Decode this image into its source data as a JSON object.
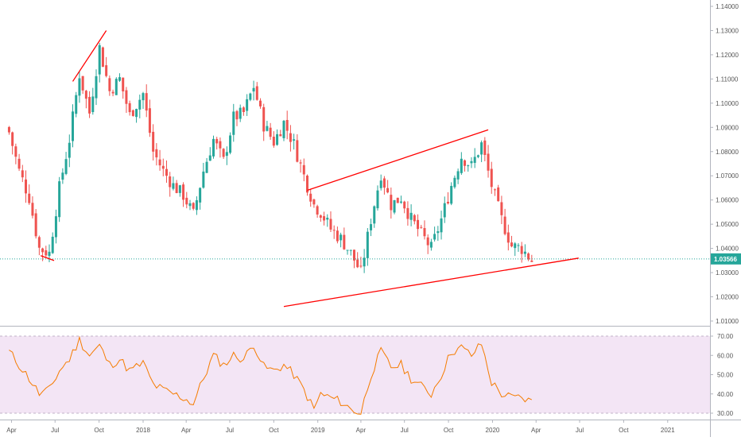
{
  "chart_data": [
    {
      "type": "candlestick",
      "title": "",
      "x_axis_labels": [
        "Apr",
        "Jul",
        "Oct",
        "2018",
        "Apr",
        "Jul",
        "Oct",
        "2019",
        "Apr",
        "Jul",
        "Oct",
        "2020",
        "Apr",
        "Jul",
        "Oct",
        "2021"
      ],
      "y_axis_labels": [
        "1.01000",
        "1.02000",
        "1.03000",
        "1.04000",
        "1.05000",
        "1.06000",
        "1.07000",
        "1.08000",
        "1.09000",
        "1.10000",
        "1.11000",
        "1.12000",
        "1.13000",
        "1.14000"
      ],
      "ylim": [
        1.007,
        1.142
      ],
      "last_price": "1.03566",
      "last_price_value": 1.03566,
      "colors": {
        "up": "#26a69a",
        "down": "#ef5350",
        "trendline": "#ff0000",
        "price_line": "#26a69a"
      },
      "close_path": [
        [
          "2017-03-27",
          1.088
        ],
        [
          "2017-04-17",
          1.072
        ],
        [
          "2017-05-08",
          1.061
        ],
        [
          "2017-05-29",
          1.04
        ],
        [
          "2017-06-19",
          1.038
        ],
        [
          "2017-07-10",
          1.065
        ],
        [
          "2017-07-31",
          1.085
        ],
        [
          "2017-08-21",
          1.112
        ],
        [
          "2017-09-11",
          1.096
        ],
        [
          "2017-10-02",
          1.123
        ],
        [
          "2017-10-23",
          1.105
        ],
        [
          "2017-11-13",
          1.11
        ],
        [
          "2017-12-04",
          1.095
        ],
        [
          "2018-01-01",
          1.104
        ],
        [
          "2018-01-22",
          1.08
        ],
        [
          "2018-02-12",
          1.072
        ],
        [
          "2018-03-05",
          1.066
        ],
        [
          "2018-03-26",
          1.062
        ],
        [
          "2018-04-16",
          1.054
        ],
        [
          "2018-05-07",
          1.072
        ],
        [
          "2018-05-28",
          1.085
        ],
        [
          "2018-06-18",
          1.076
        ],
        [
          "2018-07-09",
          1.094
        ],
        [
          "2018-07-30",
          1.096
        ],
        [
          "2018-08-20",
          1.107
        ],
        [
          "2018-09-10",
          1.091
        ],
        [
          "2018-10-01",
          1.084
        ],
        [
          "2018-10-22",
          1.092
        ],
        [
          "2018-11-12",
          1.083
        ],
        [
          "2018-12-03",
          1.07
        ],
        [
          "2018-12-24",
          1.058
        ],
        [
          "2019-01-07",
          1.055
        ],
        [
          "2019-01-28",
          1.048
        ],
        [
          "2019-02-18",
          1.044
        ],
        [
          "2019-03-11",
          1.038
        ],
        [
          "2019-04-01",
          1.03
        ],
        [
          "2019-04-22",
          1.052
        ],
        [
          "2019-05-13",
          1.071
        ],
        [
          "2019-06-03",
          1.058
        ],
        [
          "2019-06-24",
          1.061
        ],
        [
          "2019-07-15",
          1.052
        ],
        [
          "2019-08-05",
          1.046
        ],
        [
          "2019-08-26",
          1.04
        ],
        [
          "2019-09-16",
          1.052
        ],
        [
          "2019-10-07",
          1.066
        ],
        [
          "2019-10-28",
          1.078
        ],
        [
          "2019-11-18",
          1.074
        ],
        [
          "2019-12-09",
          1.083
        ],
        [
          "2019-12-30",
          1.066
        ],
        [
          "2020-01-20",
          1.052
        ],
        [
          "2020-02-10",
          1.041
        ],
        [
          "2020-03-02",
          1.04
        ],
        [
          "2020-03-23",
          1.035
        ]
      ],
      "trendlines": [
        {
          "start": [
            "2017-06-01",
            1.037
          ],
          "end": [
            "2017-06-29",
            1.035
          ]
        },
        {
          "start": [
            "2017-08-07",
            1.109
          ],
          "end": [
            "2017-10-16",
            1.13
          ]
        },
        {
          "start": [
            "2018-12-10",
            1.064
          ],
          "end": [
            "2019-12-23",
            1.089
          ]
        },
        {
          "start": [
            "2018-10-22",
            1.016
          ],
          "end": [
            "2020-06-29",
            1.036
          ]
        }
      ]
    },
    {
      "type": "line",
      "title": "",
      "y_axis_labels": [
        "30.00",
        "40.00",
        "50.00",
        "60.00",
        "70.00"
      ],
      "ylim": [
        27,
        73
      ],
      "band": [
        30,
        70
      ],
      "colors": {
        "line": "#f57c00",
        "band_fill": "#f3e5f5",
        "band_edge": "#c0b3c8"
      },
      "series": [
        [
          "2017-03-27",
          62
        ],
        [
          "2017-04-17",
          55
        ],
        [
          "2017-05-08",
          48
        ],
        [
          "2017-05-29",
          40
        ],
        [
          "2017-06-19",
          42
        ],
        [
          "2017-07-10",
          52
        ],
        [
          "2017-07-31",
          58
        ],
        [
          "2017-08-21",
          68
        ],
        [
          "2017-09-11",
          60
        ],
        [
          "2017-10-02",
          65
        ],
        [
          "2017-10-23",
          55
        ],
        [
          "2017-11-13",
          58
        ],
        [
          "2017-12-04",
          52
        ],
        [
          "2018-01-01",
          56
        ],
        [
          "2018-01-22",
          45
        ],
        [
          "2018-02-12",
          42
        ],
        [
          "2018-03-05",
          40
        ],
        [
          "2018-03-26",
          38
        ],
        [
          "2018-04-16",
          35
        ],
        [
          "2018-05-07",
          48
        ],
        [
          "2018-05-28",
          60
        ],
        [
          "2018-06-18",
          55
        ],
        [
          "2018-07-09",
          60
        ],
        [
          "2018-07-30",
          58
        ],
        [
          "2018-08-20",
          66
        ],
        [
          "2018-09-10",
          54
        ],
        [
          "2018-10-01",
          52
        ],
        [
          "2018-10-22",
          55
        ],
        [
          "2018-11-12",
          50
        ],
        [
          "2018-12-03",
          42
        ],
        [
          "2018-12-24",
          32
        ],
        [
          "2019-01-07",
          40
        ],
        [
          "2019-01-28",
          38
        ],
        [
          "2019-02-18",
          36
        ],
        [
          "2019-03-11",
          32
        ],
        [
          "2019-04-01",
          30
        ],
        [
          "2019-04-22",
          50
        ],
        [
          "2019-05-13",
          62
        ],
        [
          "2019-06-03",
          54
        ],
        [
          "2019-06-24",
          55
        ],
        [
          "2019-07-15",
          48
        ],
        [
          "2019-08-05",
          44
        ],
        [
          "2019-08-26",
          40
        ],
        [
          "2019-09-16",
          50
        ],
        [
          "2019-10-07",
          62
        ],
        [
          "2019-10-28",
          64
        ],
        [
          "2019-11-18",
          60
        ],
        [
          "2019-12-09",
          66
        ],
        [
          "2019-12-30",
          46
        ],
        [
          "2020-01-20",
          40
        ],
        [
          "2020-02-10",
          38
        ],
        [
          "2020-03-02",
          38
        ],
        [
          "2020-03-23",
          36
        ]
      ]
    }
  ]
}
